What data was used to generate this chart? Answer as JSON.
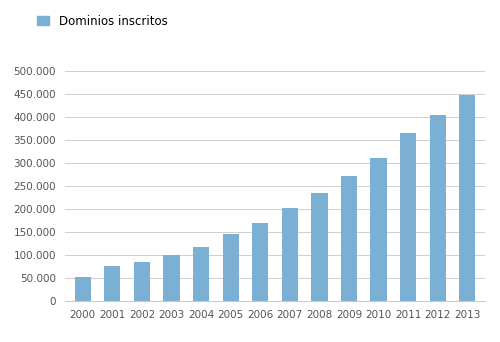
{
  "years": [
    "2000",
    "2001",
    "2002",
    "2003",
    "2004",
    "2005",
    "2006",
    "2007",
    "2008",
    "2009",
    "2010",
    "2011",
    "2012",
    "2013"
  ],
  "values": [
    53000,
    75000,
    85000,
    100000,
    117000,
    145000,
    170000,
    202000,
    235000,
    272000,
    310000,
    365000,
    405000,
    448000
  ],
  "bar_color": "#7BAFD4",
  "legend_label": "Dominios inscritos",
  "legend_color": "#7BAFD4",
  "ylim": [
    0,
    520000
  ],
  "yticks": [
    0,
    50000,
    100000,
    150000,
    200000,
    250000,
    300000,
    350000,
    400000,
    450000,
    500000
  ],
  "background_color": "#ffffff",
  "grid_color": "#c8c8c8",
  "tick_label_fontsize": 7.5,
  "legend_fontsize": 8.5
}
